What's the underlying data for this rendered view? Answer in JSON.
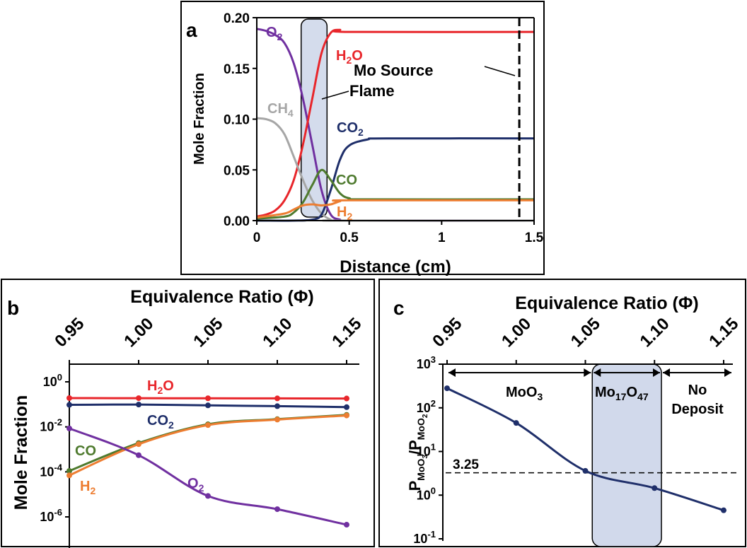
{
  "panels": {
    "a": {
      "label": "a"
    },
    "b": {
      "label": "b"
    },
    "c": {
      "label": "c"
    }
  },
  "chart_data": [
    {
      "panel": "a",
      "type": "line",
      "xlabel": "Distance (cm)",
      "ylabel": "Mole Fraction",
      "xlim": [
        0,
        1.5
      ],
      "ylim": [
        0,
        0.2
      ],
      "xticks": [
        "0",
        "0.5",
        "1",
        "1.5"
      ],
      "yticks": [
        "0.00",
        "0.05",
        "0.10",
        "0.15",
        "0.20"
      ],
      "series": [
        {
          "name": "O2",
          "label_main": "O",
          "label_sub": "2",
          "color": "#7030A0",
          "x": [
            0,
            0.05,
            0.1,
            0.15,
            0.2,
            0.25,
            0.3,
            0.35,
            0.4,
            0.45,
            0.5,
            1.5
          ],
          "y": [
            0.189,
            0.187,
            0.183,
            0.175,
            0.155,
            0.12,
            0.075,
            0.03,
            0.006,
            0.001,
            0.0,
            0.0
          ]
        },
        {
          "name": "H2O",
          "label_main": "H",
          "label_sub": "2",
          "label_tail": "O",
          "color": "#E8262B",
          "x": [
            0,
            0.05,
            0.1,
            0.15,
            0.2,
            0.25,
            0.3,
            0.35,
            0.4,
            0.45,
            0.5,
            1.5
          ],
          "y": [
            0.004,
            0.006,
            0.01,
            0.02,
            0.04,
            0.075,
            0.12,
            0.165,
            0.185,
            0.188,
            0.186,
            0.186
          ]
        },
        {
          "name": "CH4",
          "label_main": "CH",
          "label_sub": "4",
          "color": "#A6A6A6",
          "x": [
            0,
            0.05,
            0.1,
            0.15,
            0.2,
            0.25,
            0.3,
            0.35,
            0.4,
            0.45,
            1.5
          ],
          "y": [
            0.101,
            0.1,
            0.096,
            0.085,
            0.063,
            0.04,
            0.02,
            0.007,
            0.001,
            0.0,
            0.0
          ]
        },
        {
          "name": "CO2",
          "label_main": "CO",
          "label_sub": "2",
          "color": "#1F2F6A",
          "x": [
            0,
            0.2,
            0.3,
            0.35,
            0.4,
            0.45,
            0.5,
            0.6,
            0.7,
            1.5
          ],
          "y": [
            0.0,
            0.0,
            0.001,
            0.006,
            0.03,
            0.06,
            0.074,
            0.08,
            0.081,
            0.081
          ]
        },
        {
          "name": "CO",
          "label_main": "CO",
          "color": "#4E7A2E",
          "x": [
            0,
            0.15,
            0.2,
            0.25,
            0.3,
            0.35,
            0.4,
            0.45,
            0.5,
            0.6,
            1.5
          ],
          "y": [
            0.002,
            0.004,
            0.008,
            0.018,
            0.035,
            0.05,
            0.04,
            0.027,
            0.022,
            0.021,
            0.021
          ]
        },
        {
          "name": "H2",
          "label_main": "H",
          "label_sub": "2",
          "color": "#ED7D31",
          "x": [
            0,
            0.15,
            0.2,
            0.25,
            0.3,
            0.35,
            0.4,
            0.45,
            0.5,
            1.5
          ],
          "y": [
            0.003,
            0.007,
            0.011,
            0.015,
            0.016,
            0.015,
            0.016,
            0.019,
            0.02,
            0.02
          ]
        }
      ],
      "annotations": {
        "flame_label": "Flame",
        "flame_range": [
          0.24,
          0.38
        ],
        "source_label": "Mo Source",
        "source_x": 1.42
      }
    },
    {
      "panel": "b",
      "type": "line",
      "xlabel": "Equivalence Ratio (Φ)",
      "ylabel": "Mole Fraction",
      "yscale": "log",
      "ylim": [
        5e-08,
        3
      ],
      "x": [
        0.95,
        1.0,
        1.05,
        1.1,
        1.15
      ],
      "xticks": [
        "0.95",
        "1.00",
        "1.05",
        "1.10",
        "1.15"
      ],
      "ytick_base": "10",
      "yticks": [
        {
          "exp": "0",
          "value": 1
        },
        {
          "exp": "-2",
          "value": 0.01
        },
        {
          "exp": "-4",
          "value": 0.0001
        },
        {
          "exp": "-6",
          "value": 1e-06
        }
      ],
      "series": [
        {
          "name": "H2O",
          "label_main": "H",
          "label_sub": "2",
          "label_tail": "O",
          "color": "#E8262B",
          "values": [
            0.19,
            0.188,
            0.186,
            0.184,
            0.182
          ]
        },
        {
          "name": "CO2",
          "label_main": "CO",
          "label_sub": "2",
          "color": "#1F2F6A",
          "values": [
            0.095,
            0.098,
            0.09,
            0.083,
            0.075
          ]
        },
        {
          "name": "CO",
          "label_main": "CO",
          "color": "#4E7A2E",
          "values": [
            0.00011,
            0.0019,
            0.013,
            0.022,
            0.034
          ]
        },
        {
          "name": "H2",
          "label_main": "H",
          "label_sub": "2",
          "color": "#ED7D31",
          "values": [
            7e-05,
            0.0017,
            0.012,
            0.021,
            0.032
          ]
        },
        {
          "name": "O2",
          "label_main": "O",
          "label_sub": "2",
          "color": "#7030A0",
          "values": [
            0.0085,
            0.00055,
            8.5e-06,
            2.2e-06,
            4.5e-07
          ]
        }
      ]
    },
    {
      "panel": "c",
      "type": "line",
      "xlabel": "Equivalence Ratio (Φ)",
      "ylabel": {
        "p1": "P",
        "s1": "MoO",
        "s1sub": "3",
        "slash": "/P",
        "s2": "MoO",
        "s2sub": "2"
      },
      "yscale": "log",
      "ylim": [
        0.1,
        1000
      ],
      "x": [
        0.95,
        1.0,
        1.05,
        1.1,
        1.15
      ],
      "xticks": [
        "0.95",
        "1.00",
        "1.05",
        "1.10",
        "1.15"
      ],
      "ytick_base": "10",
      "yticks": [
        {
          "exp": "3",
          "value": 1000
        },
        {
          "exp": "2",
          "value": 100
        },
        {
          "exp": "1",
          "value": 10
        },
        {
          "exp": "0",
          "value": 1
        },
        {
          "exp": "-1",
          "value": 0.1
        }
      ],
      "series": [
        {
          "name": "P_MoO3/P_MoO2",
          "color": "#1F2F6A",
          "values": [
            280,
            45,
            3.6,
            1.45,
            0.45
          ]
        }
      ],
      "threshold": {
        "value": 3.25,
        "label": "3.25"
      },
      "regions": [
        {
          "label": "MoO",
          "sub": "3",
          "from": 0.95,
          "to": 1.055
        },
        {
          "label": "Mo",
          "sub": "17",
          "mid": "O",
          "sub2": "47",
          "from": 1.055,
          "to": 1.105
        },
        {
          "label_line1": "No",
          "label_line2": "Deposit",
          "from": 1.105,
          "to": 1.16
        }
      ]
    }
  ]
}
